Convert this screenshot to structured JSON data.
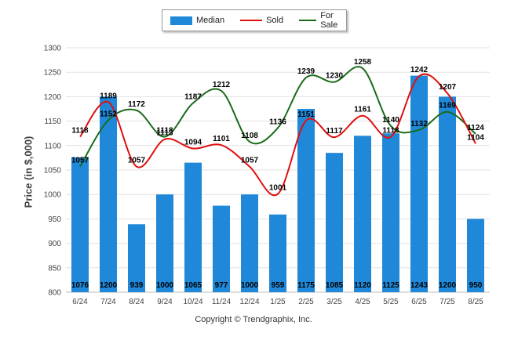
{
  "legend": {
    "median": "Median",
    "sold": "Sold",
    "for_sale": "For Sale"
  },
  "copyright": "Copyright © Trendgraphix, Inc.",
  "colors": {
    "median": "#1f88d8",
    "sold": "#e01010",
    "for_sale": "#1a6b1a"
  },
  "chart_data": {
    "type": "bar",
    "categories": [
      "6/24",
      "7/24",
      "8/24",
      "9/24",
      "10/24",
      "11/24",
      "12/24",
      "1/25",
      "2/25",
      "3/25",
      "4/25",
      "5/25",
      "6/25",
      "7/25",
      "8/25"
    ],
    "ylabel": "Price (in $,000)",
    "ylim": [
      800,
      1300
    ],
    "yticks": [
      800,
      850,
      900,
      950,
      1000,
      1050,
      1100,
      1150,
      1200,
      1250,
      1300
    ],
    "grid": true,
    "legend_position": "top",
    "series": [
      {
        "name": "Median",
        "kind": "bar",
        "values": [
          1076,
          1200,
          939,
          1000,
          1065,
          977,
          1000,
          959,
          1175,
          1085,
          1120,
          1125,
          1243,
          1200,
          950
        ]
      },
      {
        "name": "Sold",
        "kind": "line",
        "values": [
          1118,
          1189,
          1057,
          1113,
          1094,
          1101,
          1057,
          1001,
          1151,
          1117,
          1161,
          1118,
          1242,
          1207,
          1104
        ]
      },
      {
        "name": "For Sale",
        "kind": "line",
        "values": [
          1057,
          1152,
          1172,
          1118,
          1187,
          1212,
          1108,
          1136,
          1239,
          1230,
          1258,
          1140,
          1132,
          1169,
          1124
        ]
      }
    ]
  }
}
